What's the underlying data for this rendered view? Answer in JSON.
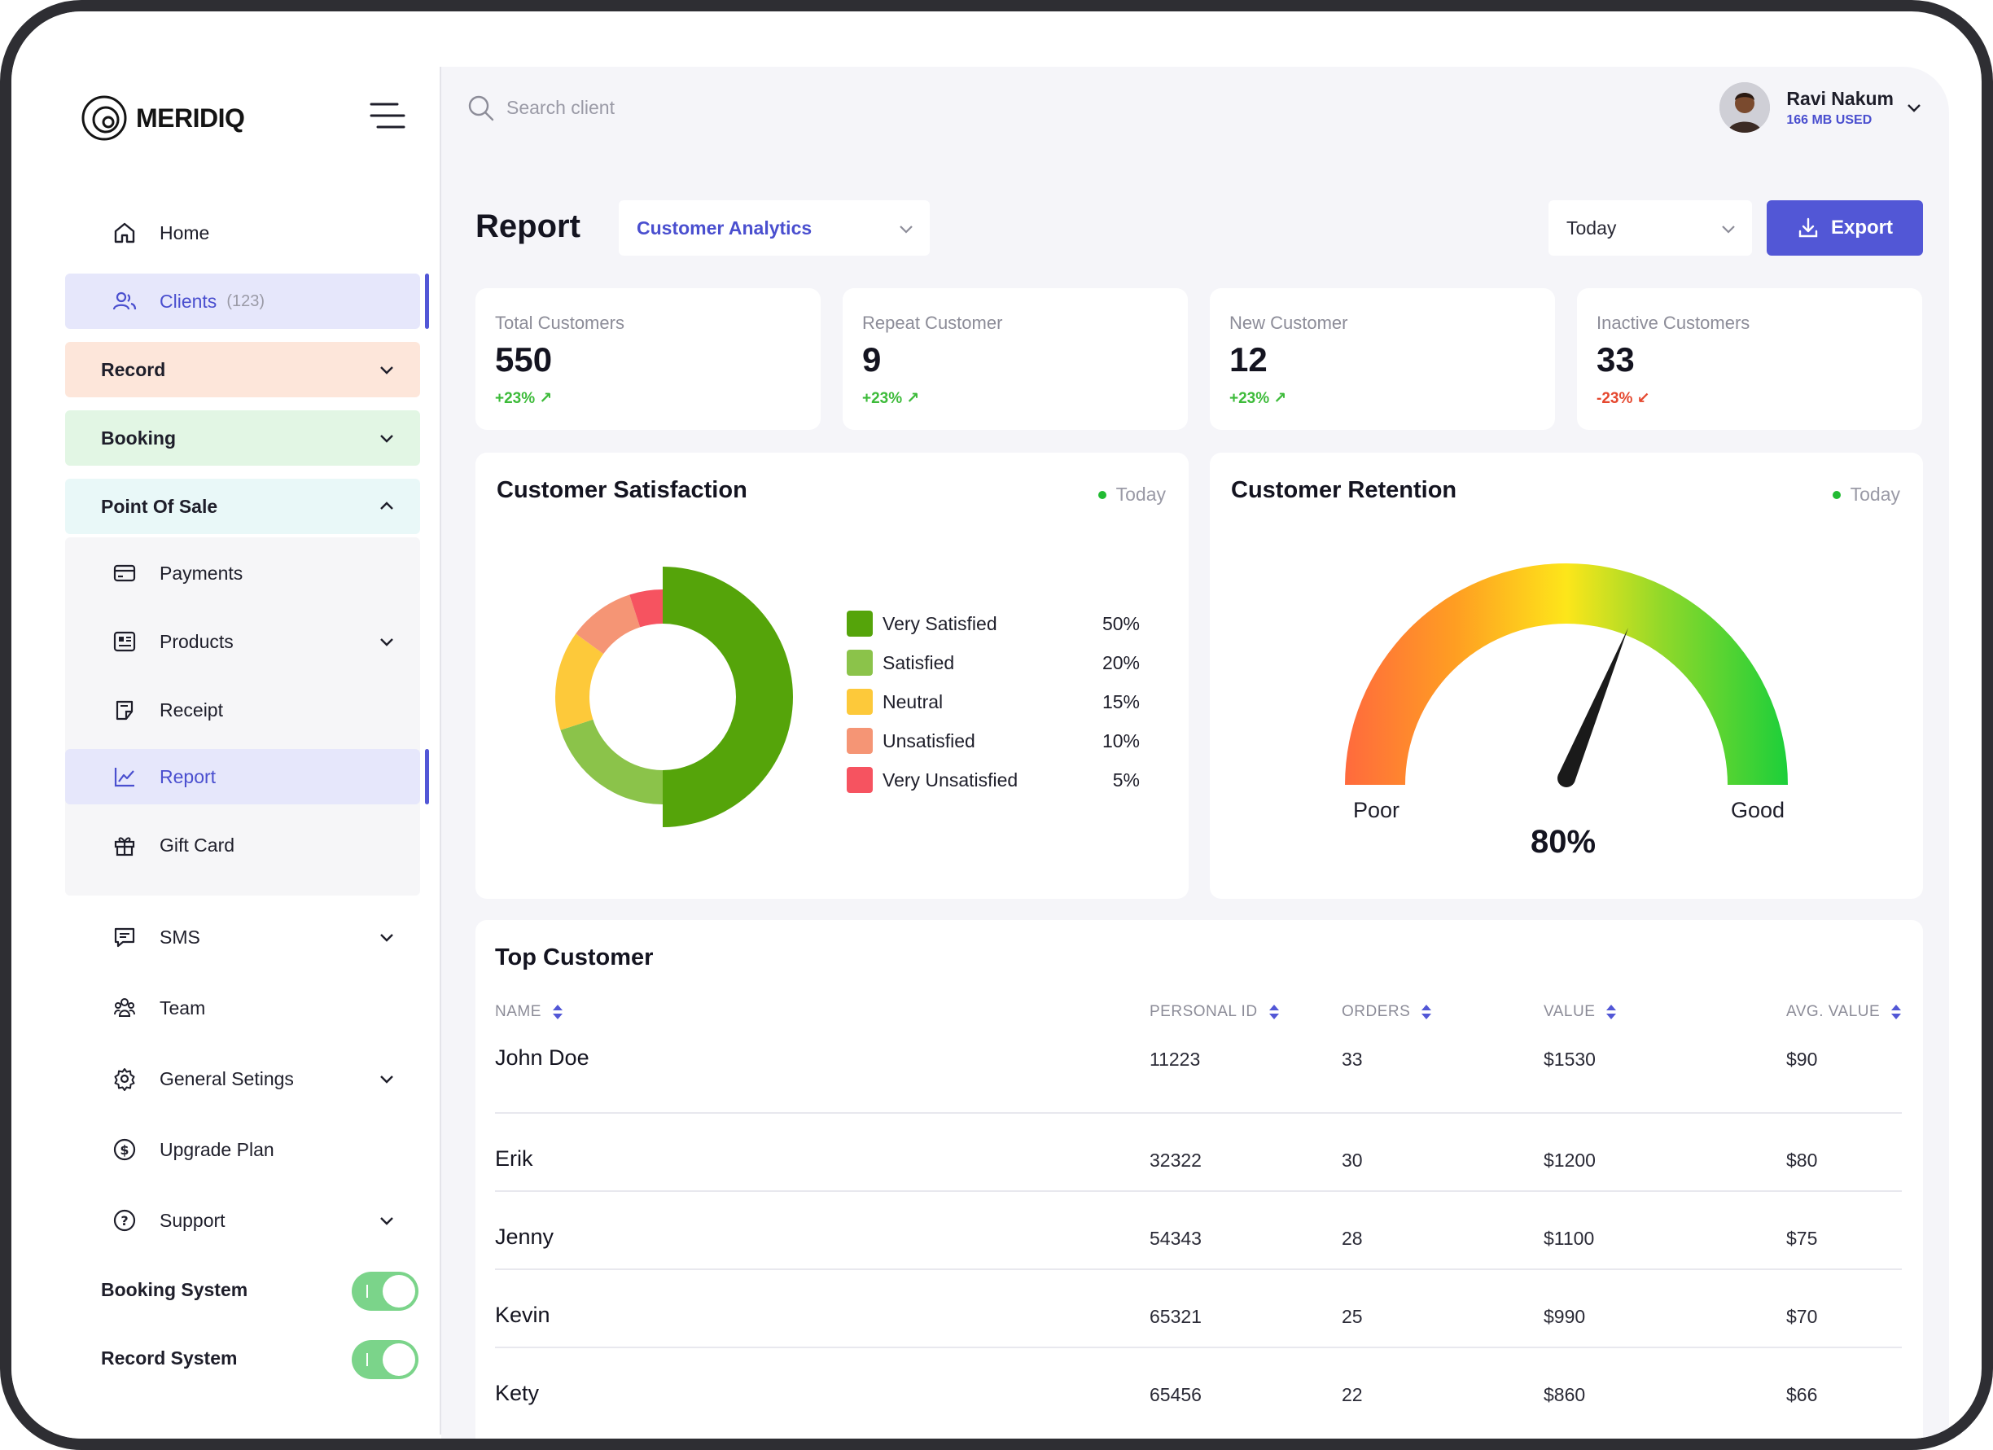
{
  "brand": {
    "name": "MERIDIQ"
  },
  "sidebar": {
    "home": "Home",
    "clients": "Clients",
    "clients_count": "(123)",
    "record": "Record",
    "booking": "Booking",
    "point_of_sale": "Point Of Sale",
    "pos_items": {
      "payments": "Payments",
      "products": "Products",
      "receipt": "Receipt",
      "report": "Report",
      "gift_card": "Gift Card"
    },
    "sms": "SMS",
    "team": "Team",
    "general_settings": "General Setings",
    "upgrade_plan": "Upgrade Plan",
    "support": "Support",
    "booking_system": "Booking System",
    "record_system": "Record System",
    "booking_system_on": true,
    "record_system_on": true,
    "colors": {
      "accent": "#5257d6",
      "record_bg": "#fde6da",
      "booking_bg": "#e2f6e4",
      "pos_bg": "#e9f8f8"
    }
  },
  "search": {
    "placeholder": "Search client"
  },
  "user": {
    "name": "Ravi Nakum",
    "usage": "166 MB USED"
  },
  "header": {
    "title": "Report",
    "report_type": "Customer Analytics",
    "period": "Today",
    "export_label": "Export"
  },
  "stats": [
    {
      "label": "Total Customers",
      "value": "550",
      "change": "+23% ↗",
      "trend": "up"
    },
    {
      "label": "Repeat Customer",
      "value": "9",
      "change": "+23% ↗",
      "trend": "up"
    },
    {
      "label": "New Customer",
      "value": "12",
      "change": "+23% ↗",
      "trend": "up"
    },
    {
      "label": "Inactive Customers",
      "value": "33",
      "change": "-23% ↙",
      "trend": "down"
    }
  ],
  "satisfaction": {
    "title": "Customer Satisfaction",
    "period": "Today"
  },
  "retention": {
    "title": "Customer Retention",
    "period": "Today",
    "poor_label": "Poor",
    "good_label": "Good",
    "value_label": "80%",
    "value": 0.8
  },
  "chart_data": {
    "type": "pie",
    "title": "Customer Satisfaction",
    "categories": [
      "Very Satisfied",
      "Satisfied",
      "Neutral",
      "Unsatisfied",
      "Very Unsatisfied"
    ],
    "values": [
      50,
      20,
      15,
      10,
      5
    ],
    "value_labels": [
      "50%",
      "20%",
      "15%",
      "10%",
      "5%"
    ],
    "colors": [
      "#55a40a",
      "#8bc34a",
      "#fdc93a",
      "#f59575",
      "#f65360"
    ]
  },
  "top_customer": {
    "title": "Top Customer",
    "columns": [
      "NAME",
      "PERSONAL ID",
      "ORDERS",
      "VALUE",
      "AVG. VALUE"
    ],
    "rows": [
      {
        "name": "John Doe",
        "id": "11223",
        "orders": "33",
        "value": "$1530",
        "avg": "$90"
      },
      {
        "name": "Erik",
        "id": "32322",
        "orders": "30",
        "value": "$1200",
        "avg": "$80"
      },
      {
        "name": "Jenny",
        "id": "54343",
        "orders": "28",
        "value": "$1100",
        "avg": "$75"
      },
      {
        "name": "Kevin",
        "id": "65321",
        "orders": "25",
        "value": "$990",
        "avg": "$70"
      },
      {
        "name": "Kety",
        "id": "65456",
        "orders": "22",
        "value": "$860",
        "avg": "$66"
      }
    ]
  }
}
